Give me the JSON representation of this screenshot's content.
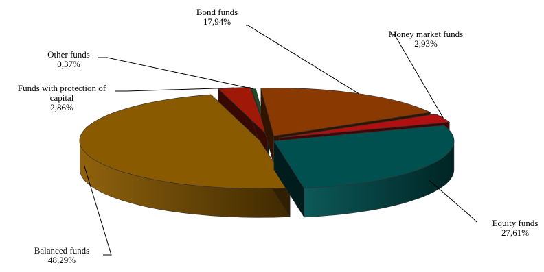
{
  "chart_data": {
    "type": "pie",
    "style": "3d-exploded",
    "legend": "none",
    "slices": [
      {
        "name": "Equity funds",
        "value_label": "27,61%",
        "value": 27.61,
        "color": "#005050"
      },
      {
        "name": "Balanced funds",
        "value_label": "48,29%",
        "value": 48.29,
        "color": "#8a5a00"
      },
      {
        "name": "Funds with protection of capital",
        "name_lines": [
          "Funds with protection of",
          "capital"
        ],
        "value_label": "2,86%",
        "value": 2.86,
        "color": "#a01808"
      },
      {
        "name": "Other funds",
        "value_label": "0,37%",
        "value": 0.37,
        "color": "#1f4a28"
      },
      {
        "name": "Bond funds",
        "value_label": "17,94%",
        "value": 17.94,
        "color": "#8a3a00"
      },
      {
        "name": "Money market funds",
        "value_label": "2,93%",
        "value": 2.93,
        "color": "#b01010"
      }
    ]
  }
}
